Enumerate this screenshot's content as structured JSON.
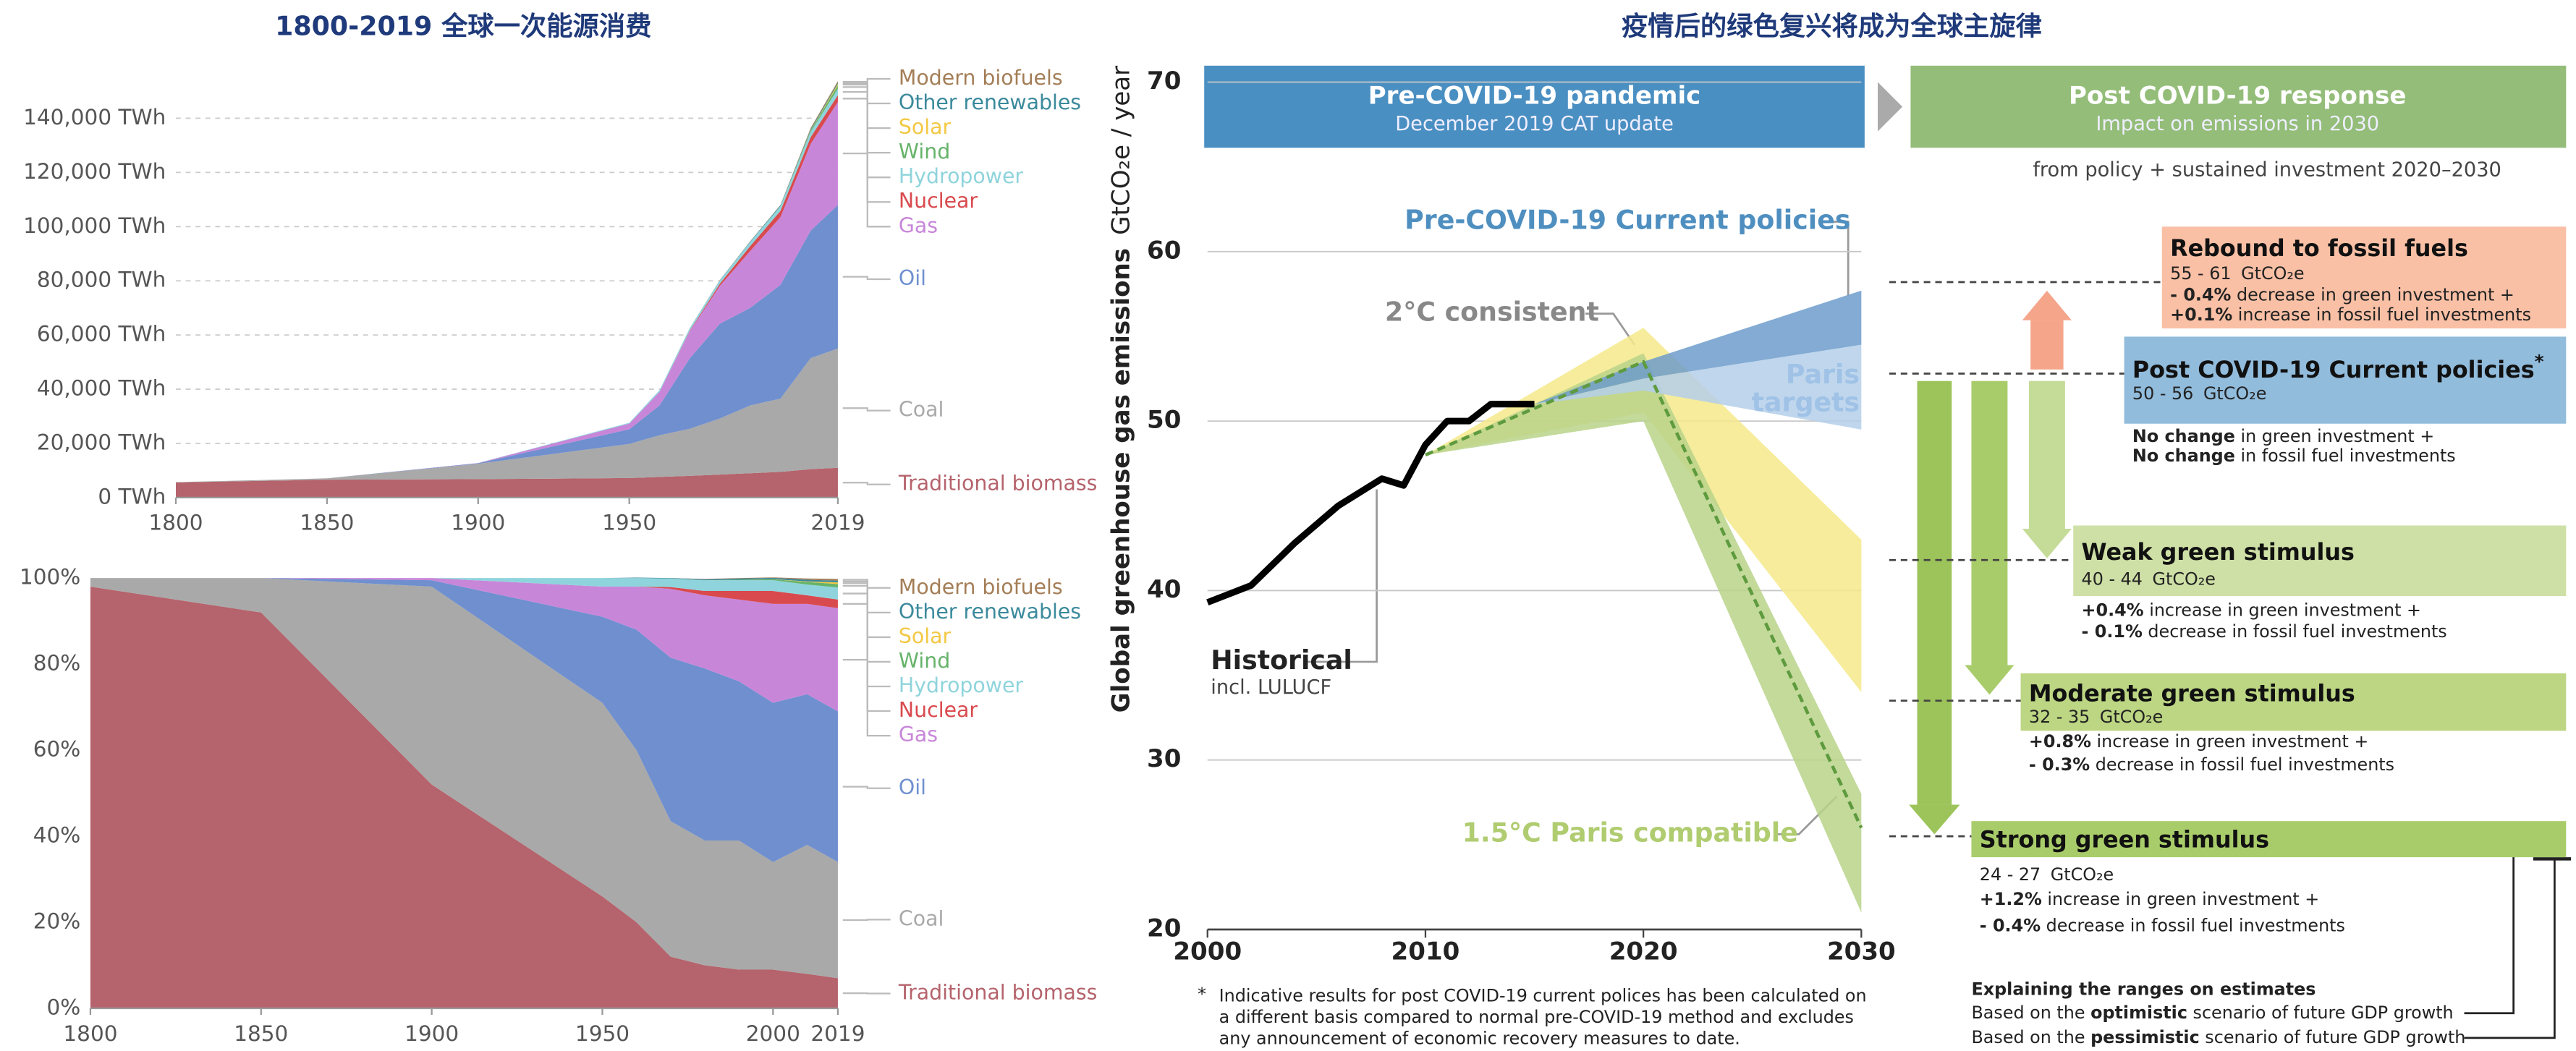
{
  "titles": {
    "left": "1800-2019 全球一次能源消费",
    "right": "疫情后的绿色复兴将成为全球主旋律"
  },
  "chart_data": [
    {
      "type": "area",
      "stacked": true,
      "x": [
        1800,
        1850,
        1900,
        1950,
        1960,
        1970,
        1980,
        1990,
        2000,
        2010,
        2019
      ],
      "xlim": [
        1800,
        2019
      ],
      "xticks": [
        1800,
        1850,
        1900,
        1950,
        2019
      ],
      "ylim": [
        0,
        160000
      ],
      "yticks": [
        {
          "value": 0,
          "label": "0 TWh"
        },
        {
          "value": 20000,
          "label": "20,000 TWh"
        },
        {
          "value": 40000,
          "label": "40,000 TWh"
        },
        {
          "value": 60000,
          "label": "60,000 TWh"
        },
        {
          "value": 80000,
          "label": "80,000 TWh"
        },
        {
          "value": 100000,
          "label": "100,000 TWh"
        },
        {
          "value": 120000,
          "label": "120,000 TWh"
        },
        {
          "value": 140000,
          "label": "140,000 TWh"
        }
      ],
      "grid": true,
      "series": [
        {
          "name": "Traditional biomass",
          "color": "#b5636c",
          "values": [
            5600,
            6600,
            6800,
            7200,
            7600,
            8000,
            8500,
            9000,
            9500,
            10500,
            11000
          ]
        },
        {
          "name": "Coal",
          "color": "#a9a9a9",
          "values": [
            100,
            500,
            5700,
            12600,
            15400,
            17400,
            20700,
            25000,
            27000,
            41000,
            44000
          ]
        },
        {
          "name": "Oil",
          "color": "#6f8fcf",
          "values": [
            0,
            0,
            200,
            5400,
            11000,
            26000,
            35000,
            36000,
            42000,
            47000,
            53000
          ]
        },
        {
          "name": "Gas",
          "color": "#c886d9",
          "values": [
            0,
            0,
            60,
            2100,
            5000,
            10000,
            14000,
            21000,
            25000,
            32000,
            38000
          ]
        },
        {
          "name": "Nuclear",
          "color": "#d94a4e",
          "values": [
            0,
            0,
            0,
            0,
            10,
            200,
            800,
            1800,
            2300,
            2500,
            2500
          ]
        },
        {
          "name": "Hydropower",
          "color": "#8fd4dc",
          "values": [
            0,
            0,
            10,
            300,
            600,
            900,
            1200,
            1500,
            1700,
            2000,
            2400
          ]
        },
        {
          "name": "Wind",
          "color": "#66b36a",
          "values": [
            0,
            0,
            0,
            0,
            0,
            0,
            0,
            10,
            80,
            500,
            1200
          ]
        },
        {
          "name": "Solar",
          "color": "#f3c843",
          "values": [
            0,
            0,
            0,
            0,
            0,
            0,
            0,
            0,
            5,
            100,
            600
          ]
        },
        {
          "name": "Other renewables",
          "color": "#3b8a9c",
          "values": [
            0,
            0,
            0,
            0,
            10,
            30,
            100,
            200,
            300,
            400,
            500
          ]
        },
        {
          "name": "Modern biofuels",
          "color": "#a47e57",
          "values": [
            0,
            0,
            0,
            0,
            0,
            10,
            50,
            100,
            100,
            400,
            500
          ]
        }
      ]
    },
    {
      "type": "area",
      "stacked": true,
      "x": [
        1800,
        1850,
        1900,
        1950,
        1960,
        1970,
        1980,
        1990,
        2000,
        2010,
        2019
      ],
      "xlim": [
        1800,
        2019
      ],
      "xticks": [
        1800,
        1850,
        1900,
        1950,
        2000,
        2019
      ],
      "ylim": [
        0,
        100
      ],
      "yticks": [
        {
          "value": 0,
          "label": "0%"
        },
        {
          "value": 20,
          "label": "20%"
        },
        {
          "value": 40,
          "label": "40%"
        },
        {
          "value": 60,
          "label": "60%"
        },
        {
          "value": 80,
          "label": "80%"
        },
        {
          "value": 100,
          "label": "100%"
        }
      ],
      "grid": false,
      "series": [
        {
          "name": "Traditional biomass",
          "color": "#b5636c",
          "values": [
            98,
            92,
            52,
            26,
            20,
            12,
            10,
            9,
            9,
            8,
            7
          ]
        },
        {
          "name": "Coal",
          "color": "#a9a9a9",
          "values": [
            2,
            8,
            46,
            45,
            40,
            31.5,
            29,
            30,
            25,
            30,
            27
          ]
        },
        {
          "name": "Oil",
          "color": "#6f8fcf",
          "values": [
            0,
            0,
            1.5,
            20,
            28,
            38,
            40,
            37,
            37,
            35,
            35
          ]
        },
        {
          "name": "Gas",
          "color": "#c886d9",
          "values": [
            0,
            0,
            0.5,
            7,
            10,
            16,
            17,
            19,
            23,
            21,
            24
          ]
        },
        {
          "name": "Nuclear",
          "color": "#d94a4e",
          "values": [
            0,
            0,
            0,
            0,
            0,
            0.4,
            1,
            2,
            3,
            2,
            2
          ]
        },
        {
          "name": "Hydropower",
          "color": "#8fd4dc",
          "values": [
            0,
            0,
            0,
            2,
            2,
            2,
            2.5,
            2.5,
            2.5,
            2.5,
            2.8
          ]
        },
        {
          "name": "Wind",
          "color": "#66b36a",
          "values": [
            0,
            0,
            0,
            0,
            0,
            0,
            0,
            0.1,
            0.2,
            0.6,
            0.8
          ]
        },
        {
          "name": "Solar",
          "color": "#f3c843",
          "values": [
            0,
            0,
            0,
            0,
            0,
            0,
            0,
            0,
            0.05,
            0.1,
            0.4
          ]
        },
        {
          "name": "Other renewables",
          "color": "#3b8a9c",
          "values": [
            0,
            0,
            0,
            0,
            0.1,
            0.1,
            0.2,
            0.3,
            0.3,
            0.4,
            0.4
          ]
        },
        {
          "name": "Modern biofuels",
          "color": "#a47e57",
          "values": [
            0,
            0,
            0,
            0,
            0,
            0,
            0.1,
            0.1,
            0.1,
            0.3,
            0.4
          ]
        }
      ]
    },
    {
      "type": "line",
      "ylabel": "Global greenhouse gas emissions",
      "yunit": "GtCO₂e / year",
      "xlim": [
        2000,
        2030
      ],
      "xticks": [
        2000,
        2010,
        2020,
        2030
      ],
      "ylim": [
        20,
        70
      ],
      "yticks": [
        20,
        30,
        40,
        50,
        60,
        70
      ],
      "grid": true,
      "series": [
        {
          "name": "Historical",
          "note": "incl. LULUCF",
          "color": "#000000",
          "x": [
            2000,
            2002,
            2004,
            2006,
            2008,
            2009,
            2010,
            2011,
            2012,
            2013,
            2015
          ],
          "values": [
            39.3,
            40.3,
            42.8,
            45,
            46.6,
            46.2,
            48.6,
            50,
            50,
            51,
            51
          ]
        },
        {
          "color": "#5e9a3e",
          "dashed": true,
          "x": [
            2010,
            2020,
            2030
          ],
          "values": [
            48,
            53.5,
            26
          ]
        }
      ],
      "bands": [
        {
          "label": "2°C consistent",
          "color": "#f5e98a",
          "x": [
            2010,
            2020,
            2030
          ],
          "low": [
            48,
            50.5,
            34
          ],
          "high": [
            48,
            55.5,
            43
          ]
        },
        {
          "label": "1.5°C Paris compatible",
          "color": "#b9d48a",
          "x": [
            2010,
            2020,
            2030
          ],
          "low": [
            48,
            50,
            21
          ],
          "high": [
            48,
            54,
            28
          ]
        },
        {
          "label": "Pre-COVID-19 Current policies",
          "color": "#6d9ccb",
          "x": [
            2015,
            2020,
            2030
          ],
          "low": [
            51,
            52.5,
            54.5
          ],
          "high": [
            51,
            53.5,
            57.7
          ]
        },
        {
          "label": [
            "Paris",
            "targets"
          ],
          "color": "#b4cfea",
          "x": [
            2015,
            2020,
            2030
          ],
          "low": [
            51,
            51.8,
            49.5
          ],
          "high": [
            51,
            52.5,
            54.5
          ]
        }
      ],
      "headers": [
        {
          "title": "Pre-COVID-19 pandemic",
          "subtitle": "December 2019 CAT update"
        },
        {
          "title": "Post COVID-19 response",
          "subtitle": "Impact on emissions in 2030"
        }
      ],
      "subheader": "from policy + sustained investment 2020–2030",
      "unit": "GtCO₂e",
      "scenarios": [
        {
          "title": "Rebound to fossil fuels",
          "range": "55 - 61",
          "level": 58.2,
          "color": "#f9c0a5",
          "lines": [
            [
              "- 0.4%",
              " decrease in green investment +"
            ],
            [
              "+0.1%",
              " increase in fossil fuel investments"
            ]
          ]
        },
        {
          "title": "Post COVID-19 Current policies",
          "note": "*",
          "range": "50 - 56",
          "level": 52.8,
          "color": "#92bcdc",
          "lines": [
            [
              "No change",
              " in green investment +"
            ],
            [
              "No change",
              " in fossil fuel investments"
            ]
          ]
        },
        {
          "title": "Weak green stimulus",
          "range": "40 - 44",
          "level": 41.8,
          "color": "#cfe0a6",
          "lines": [
            [
              "+0.4%",
              " increase in green investment +"
            ],
            [
              "- 0.1%",
              " decrease in fossil fuel investments"
            ]
          ]
        },
        {
          "title": "Moderate green stimulus",
          "range": "32 - 35",
          "level": 33.5,
          "color": "#bcd683",
          "lines": [
            [
              "+0.8%",
              " increase in green investment +"
            ],
            [
              "- 0.3%",
              " decrease in fossil fuel investments"
            ]
          ]
        },
        {
          "title": "Strong green stimulus",
          "range": "24 - 27",
          "level": 25.5,
          "color": "#a9cc6a",
          "lines": [
            [
              "+1.2%",
              " increase in green investment +"
            ],
            [
              "- 0.4%",
              " decrease in fossil fuel investments"
            ]
          ]
        }
      ],
      "range_legend": {
        "title": "Explaining the ranges on estimates",
        "lines": [
          [
            "Based on the ",
            "optimistic",
            " scenario of future GDP growth"
          ],
          [
            "Based on the ",
            "pessimistic",
            " scenario of future GDP growth"
          ]
        ]
      },
      "footnote": {
        "mark": "*",
        "lines": [
          "Indicative results for post COVID-19 current polices has been calculated on",
          "a different basis compared to normal pre-COVID-19 method and excludes",
          "any announcement of economic recovery measures to date."
        ]
      }
    }
  ]
}
